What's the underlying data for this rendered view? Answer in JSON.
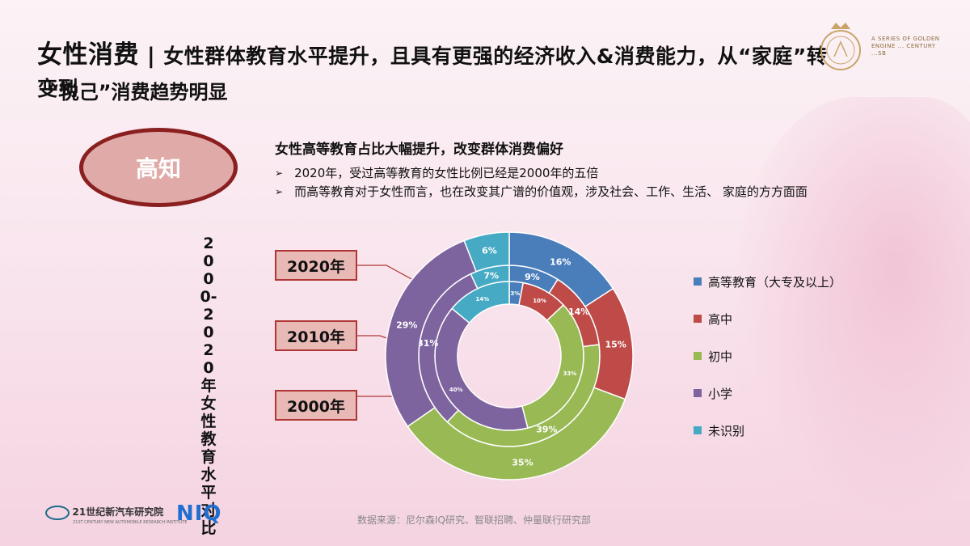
{
  "title": {
    "main": "女性消费",
    "separator": "|",
    "rest": "女性群体教育水平提升，且具有更强的经济收入&消费能力，从“家庭”转变到",
    "line2": "“悦己”消费趋势明显"
  },
  "logo": {
    "text": "A SERIES OF GOLDEN ENGINE ... CENTURY ...SB"
  },
  "tag": "高知",
  "section": {
    "heading": "女性高等教育占比大幅提升，改变群体消费偏好",
    "bullets": [
      "2020年，受过高等教育的女性比例已经是2000年的五倍",
      "而高等教育对于女性而言，也在改变其广谱的价值观，涉及社会、工作、生活、 家庭的方方面面"
    ],
    "bullet_marker": "➢"
  },
  "vertical_label": "2000-2020年女性教育水平对比",
  "years": [
    "2020年",
    "2010年",
    "2000年"
  ],
  "colors": {
    "高等教育": "#4a7ebb",
    "高中": "#be4b48",
    "初中": "#98b954",
    "小学": "#7e649e",
    "未识别": "#46aac5"
  },
  "chart_data": {
    "type": "donut",
    "categories": [
      "高等教育（大专及以上）",
      "高中",
      "初中",
      "小学",
      "未识别"
    ],
    "series": [
      {
        "name": "2000年",
        "values": [
          3,
          10,
          33,
          40,
          14
        ],
        "labels": [
          "3%",
          "10%",
          "33%",
          "40%",
          "14%"
        ]
      },
      {
        "name": "2010年",
        "values": [
          9,
          14,
          39,
          31,
          7
        ],
        "labels": [
          "9%",
          "14%",
          "39%",
          "31%",
          "7%"
        ]
      },
      {
        "name": "2020年",
        "values": [
          16,
          15,
          35,
          29,
          6
        ],
        "labels": [
          "16%",
          "15%",
          "35%",
          "29%",
          "6%"
        ]
      }
    ],
    "legend": [
      "高等教育（大专及以上）",
      "高中",
      "初中",
      "小学",
      "未识别"
    ],
    "legend_position": "right"
  },
  "footer": {
    "institute": "21世纪新汽车研究院",
    "institute_en": "21ST CENTURY NEW AUTOMOBILE RESEARCH INSTITUTE",
    "brand": "NIQ",
    "source": "数据来源：尼尔森IQ研究、智联招聘、仲量联行研究部"
  }
}
